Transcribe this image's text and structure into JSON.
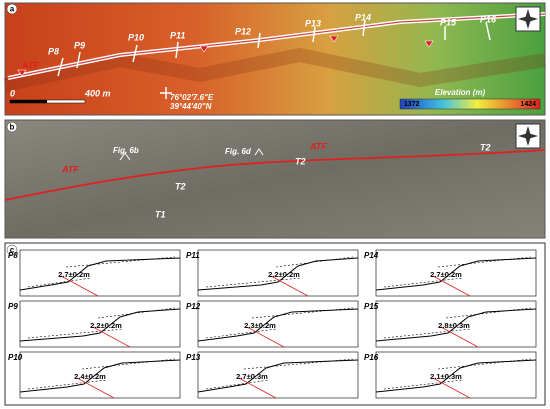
{
  "panel_a": {
    "label": "a",
    "points": [
      "P8",
      "P9",
      "P10",
      "P11",
      "P12",
      "P13",
      "P14",
      "P15",
      "P16"
    ],
    "fault": "ATF",
    "scale_start": "0",
    "scale_end": "400 m",
    "coord": [
      "76°02'7.6\"E",
      "39°44'40\"N"
    ],
    "legend_title": "Elevation (m)",
    "legend_min": "1372",
    "legend_max": "1424"
  },
  "panel_b": {
    "label": "b",
    "fault": [
      "ATF",
      "ATF"
    ],
    "figs": [
      "Fig. 6b",
      "Fig. 6d"
    ],
    "terraces": [
      "T2",
      "T2",
      "T2",
      "T1"
    ]
  },
  "panel_c": {
    "label": "c",
    "profiles": [
      {
        "name": "P8",
        "offset": "2.7±0.2m"
      },
      {
        "name": "P9",
        "offset": "2.2±0.2m"
      },
      {
        "name": "P10",
        "offset": "2.4±0.2m"
      },
      {
        "name": "P11",
        "offset": "2.2±0.2m"
      },
      {
        "name": "P12",
        "offset": "2.3±0.2m"
      },
      {
        "name": "P13",
        "offset": "2.7±0.3m"
      },
      {
        "name": "P14",
        "offset": "2.7±0.2m"
      },
      {
        "name": "P15",
        "offset": "2.8±0.3m"
      },
      {
        "name": "P16",
        "offset": "2.1±0.3m"
      }
    ]
  }
}
